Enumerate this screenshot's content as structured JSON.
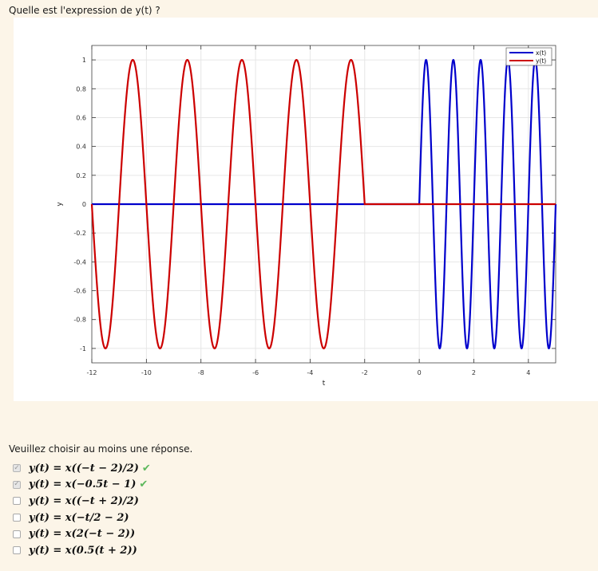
{
  "question": {
    "text": "Quelle est l'expression de y(t) ?"
  },
  "chart_data": {
    "type": "line",
    "xlabel": "t",
    "ylabel": "y",
    "xlim": [
      -12,
      5
    ],
    "ylim": [
      -1.1,
      1.1
    ],
    "grid": true,
    "legend_position": "top-right",
    "x_ticks": [
      "-12",
      "-10",
      "-8",
      "-6",
      "-4",
      "-2",
      "0",
      "2",
      "4"
    ],
    "y_ticks": [
      "1",
      "0.8",
      "0.6",
      "0.4",
      "0.2",
      "0",
      "-0.2",
      "-0.4",
      "-0.6",
      "-0.8",
      "-1"
    ],
    "series": [
      {
        "name": "x(t)",
        "color": "#0000cc",
        "description_of_values": "x(t) = 0 for t < 0, sin(2*pi*t) for 0 <= t <= 5",
        "samples": [
          [
            -12,
            0
          ],
          [
            0,
            0
          ],
          [
            0.25,
            1
          ],
          [
            0.75,
            -1
          ],
          [
            1.25,
            1
          ],
          [
            1.75,
            -1
          ],
          [
            2.25,
            1
          ],
          [
            2.75,
            -1
          ],
          [
            3.25,
            1
          ],
          [
            3.75,
            -1
          ],
          [
            4.25,
            1
          ],
          [
            4.75,
            -1
          ],
          [
            5,
            0
          ]
        ]
      },
      {
        "name": "y(t)",
        "color": "#cc0000",
        "description_of_values": "y(t) = -sin(pi*(t+2)) for -12 <= t <= -2, 0 for t > -2",
        "samples": [
          [
            -12,
            0
          ],
          [
            -11.5,
            -1
          ],
          [
            -10.5,
            1
          ],
          [
            -9.5,
            -1
          ],
          [
            -8.5,
            1
          ],
          [
            -7.5,
            -1
          ],
          [
            -6.5,
            1
          ],
          [
            -5.5,
            -1
          ],
          [
            -4.5,
            1
          ],
          [
            -3.5,
            -1
          ],
          [
            -2.5,
            1
          ],
          [
            -2,
            0
          ],
          [
            5,
            0
          ]
        ]
      }
    ]
  },
  "answers": {
    "prompt": "Veuillez choisir au moins une réponse.",
    "check_mark": "✓",
    "correct_icon": "✔",
    "options": [
      {
        "label": "y(t) = x((−t − 2)/2)",
        "checked": true,
        "correct": true
      },
      {
        "label": "y(t) = x(−0.5t − 1)",
        "checked": true,
        "correct": true
      },
      {
        "label": "y(t) = x((−t + 2)/2)",
        "checked": false,
        "correct": false
      },
      {
        "label": "y(t) = x(−t/2 − 2)",
        "checked": false,
        "correct": false
      },
      {
        "label": "y(t) = x(2(−t − 2))",
        "checked": false,
        "correct": false
      },
      {
        "label": "y(t) = x(0.5(t + 2))",
        "checked": false,
        "correct": false
      }
    ]
  }
}
